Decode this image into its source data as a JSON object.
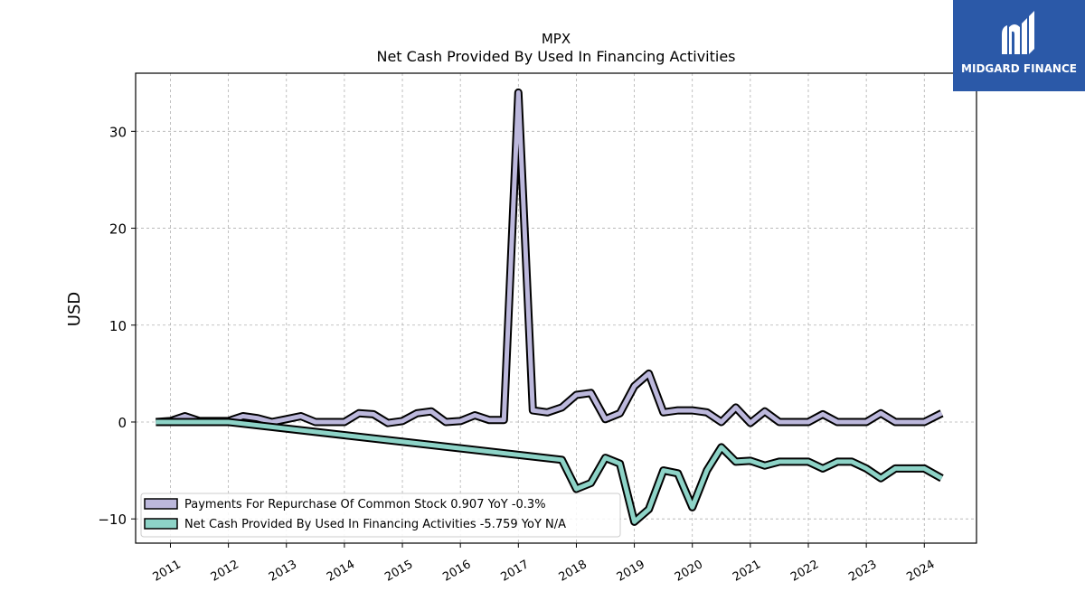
{
  "brand": {
    "name": "MIDGARD FINANCE",
    "background": "#2b59a8"
  },
  "chart_data": {
    "type": "line",
    "title": "MPX",
    "subtitle": "Net Cash Provided By Used In Financing Activities",
    "ylabel": "USD",
    "xlabel": "",
    "xlim": [
      2010.4,
      2024.9
    ],
    "ylim": [
      -12.5,
      36
    ],
    "yticks": [
      -10,
      0,
      10,
      20,
      30
    ],
    "ytick_labels": [
      "−10",
      "0",
      "10",
      "20",
      "30"
    ],
    "xticks": [
      "2011",
      "2012",
      "2013",
      "2014",
      "2015",
      "2016",
      "2017",
      "2018",
      "2019",
      "2020",
      "2021",
      "2022",
      "2023",
      "2024"
    ],
    "grid": true,
    "legend_position": "lower-left",
    "series": [
      {
        "name": "Payments For Repurchase Of Common Stock",
        "legend": "Payments For Repurchase Of Common Stock  0.907 YoY -0.3%",
        "color": "#bcb8dc",
        "x": [
          2010.75,
          2011.0,
          2011.25,
          2011.5,
          2011.75,
          2012.0,
          2012.25,
          2012.5,
          2012.75,
          2013.0,
          2013.25,
          2013.5,
          2013.75,
          2014.0,
          2014.25,
          2014.5,
          2014.75,
          2015.0,
          2015.25,
          2015.5,
          2015.75,
          2016.0,
          2016.25,
          2016.5,
          2016.75,
          2017.0,
          2017.25,
          2017.5,
          2017.75,
          2018.0,
          2018.25,
          2018.5,
          2018.75,
          2019.0,
          2019.25,
          2019.5,
          2019.75,
          2020.0,
          2020.25,
          2020.5,
          2020.75,
          2021.0,
          2021.25,
          2021.5,
          2021.75,
          2022.0,
          2022.25,
          2022.5,
          2022.75,
          2023.0,
          2023.25,
          2023.5,
          2023.75,
          2024.0,
          2024.3
        ],
        "values": [
          0.0,
          0.1,
          0.6,
          0.1,
          0.1,
          0.1,
          0.6,
          0.4,
          0.0,
          0.3,
          0.6,
          0.0,
          0.0,
          0.0,
          0.9,
          0.8,
          -0.1,
          0.1,
          0.9,
          1.1,
          0.0,
          0.1,
          0.7,
          0.2,
          0.2,
          34.0,
          1.2,
          1.0,
          1.5,
          2.8,
          3.0,
          0.3,
          0.9,
          3.7,
          5.0,
          1.0,
          1.2,
          1.2,
          1.0,
          0.0,
          1.5,
          -0.1,
          1.1,
          0.0,
          0.0,
          0.0,
          0.8,
          0.0,
          0.0,
          0.0,
          0.9,
          0.0,
          0.0,
          0.0,
          0.9
        ]
      },
      {
        "name": "Net Cash Provided By Used In Financing Activities",
        "legend": "Net Cash Provided By Used In Financing Activities  -5.759 YoY N/A",
        "color": "#8dd3c7",
        "x": [
          2010.75,
          2012.0,
          2017.75,
          2018.0,
          2018.25,
          2018.5,
          2018.75,
          2019.0,
          2019.25,
          2019.5,
          2019.75,
          2020.0,
          2020.25,
          2020.5,
          2020.75,
          2021.0,
          2021.25,
          2021.5,
          2021.75,
          2022.0,
          2022.25,
          2022.5,
          2022.75,
          2023.0,
          2023.25,
          2023.5,
          2023.75,
          2024.0,
          2024.3
        ],
        "values": [
          0.0,
          0.0,
          -3.9,
          -6.9,
          -6.3,
          -3.7,
          -4.3,
          -10.3,
          -9.0,
          -5.0,
          -5.3,
          -8.8,
          -5.0,
          -2.6,
          -4.1,
          -4.0,
          -4.5,
          -4.1,
          -4.1,
          -4.1,
          -4.8,
          -4.1,
          -4.1,
          -4.8,
          -5.8,
          -4.8,
          -4.8,
          -4.8,
          -5.8
        ]
      }
    ]
  }
}
